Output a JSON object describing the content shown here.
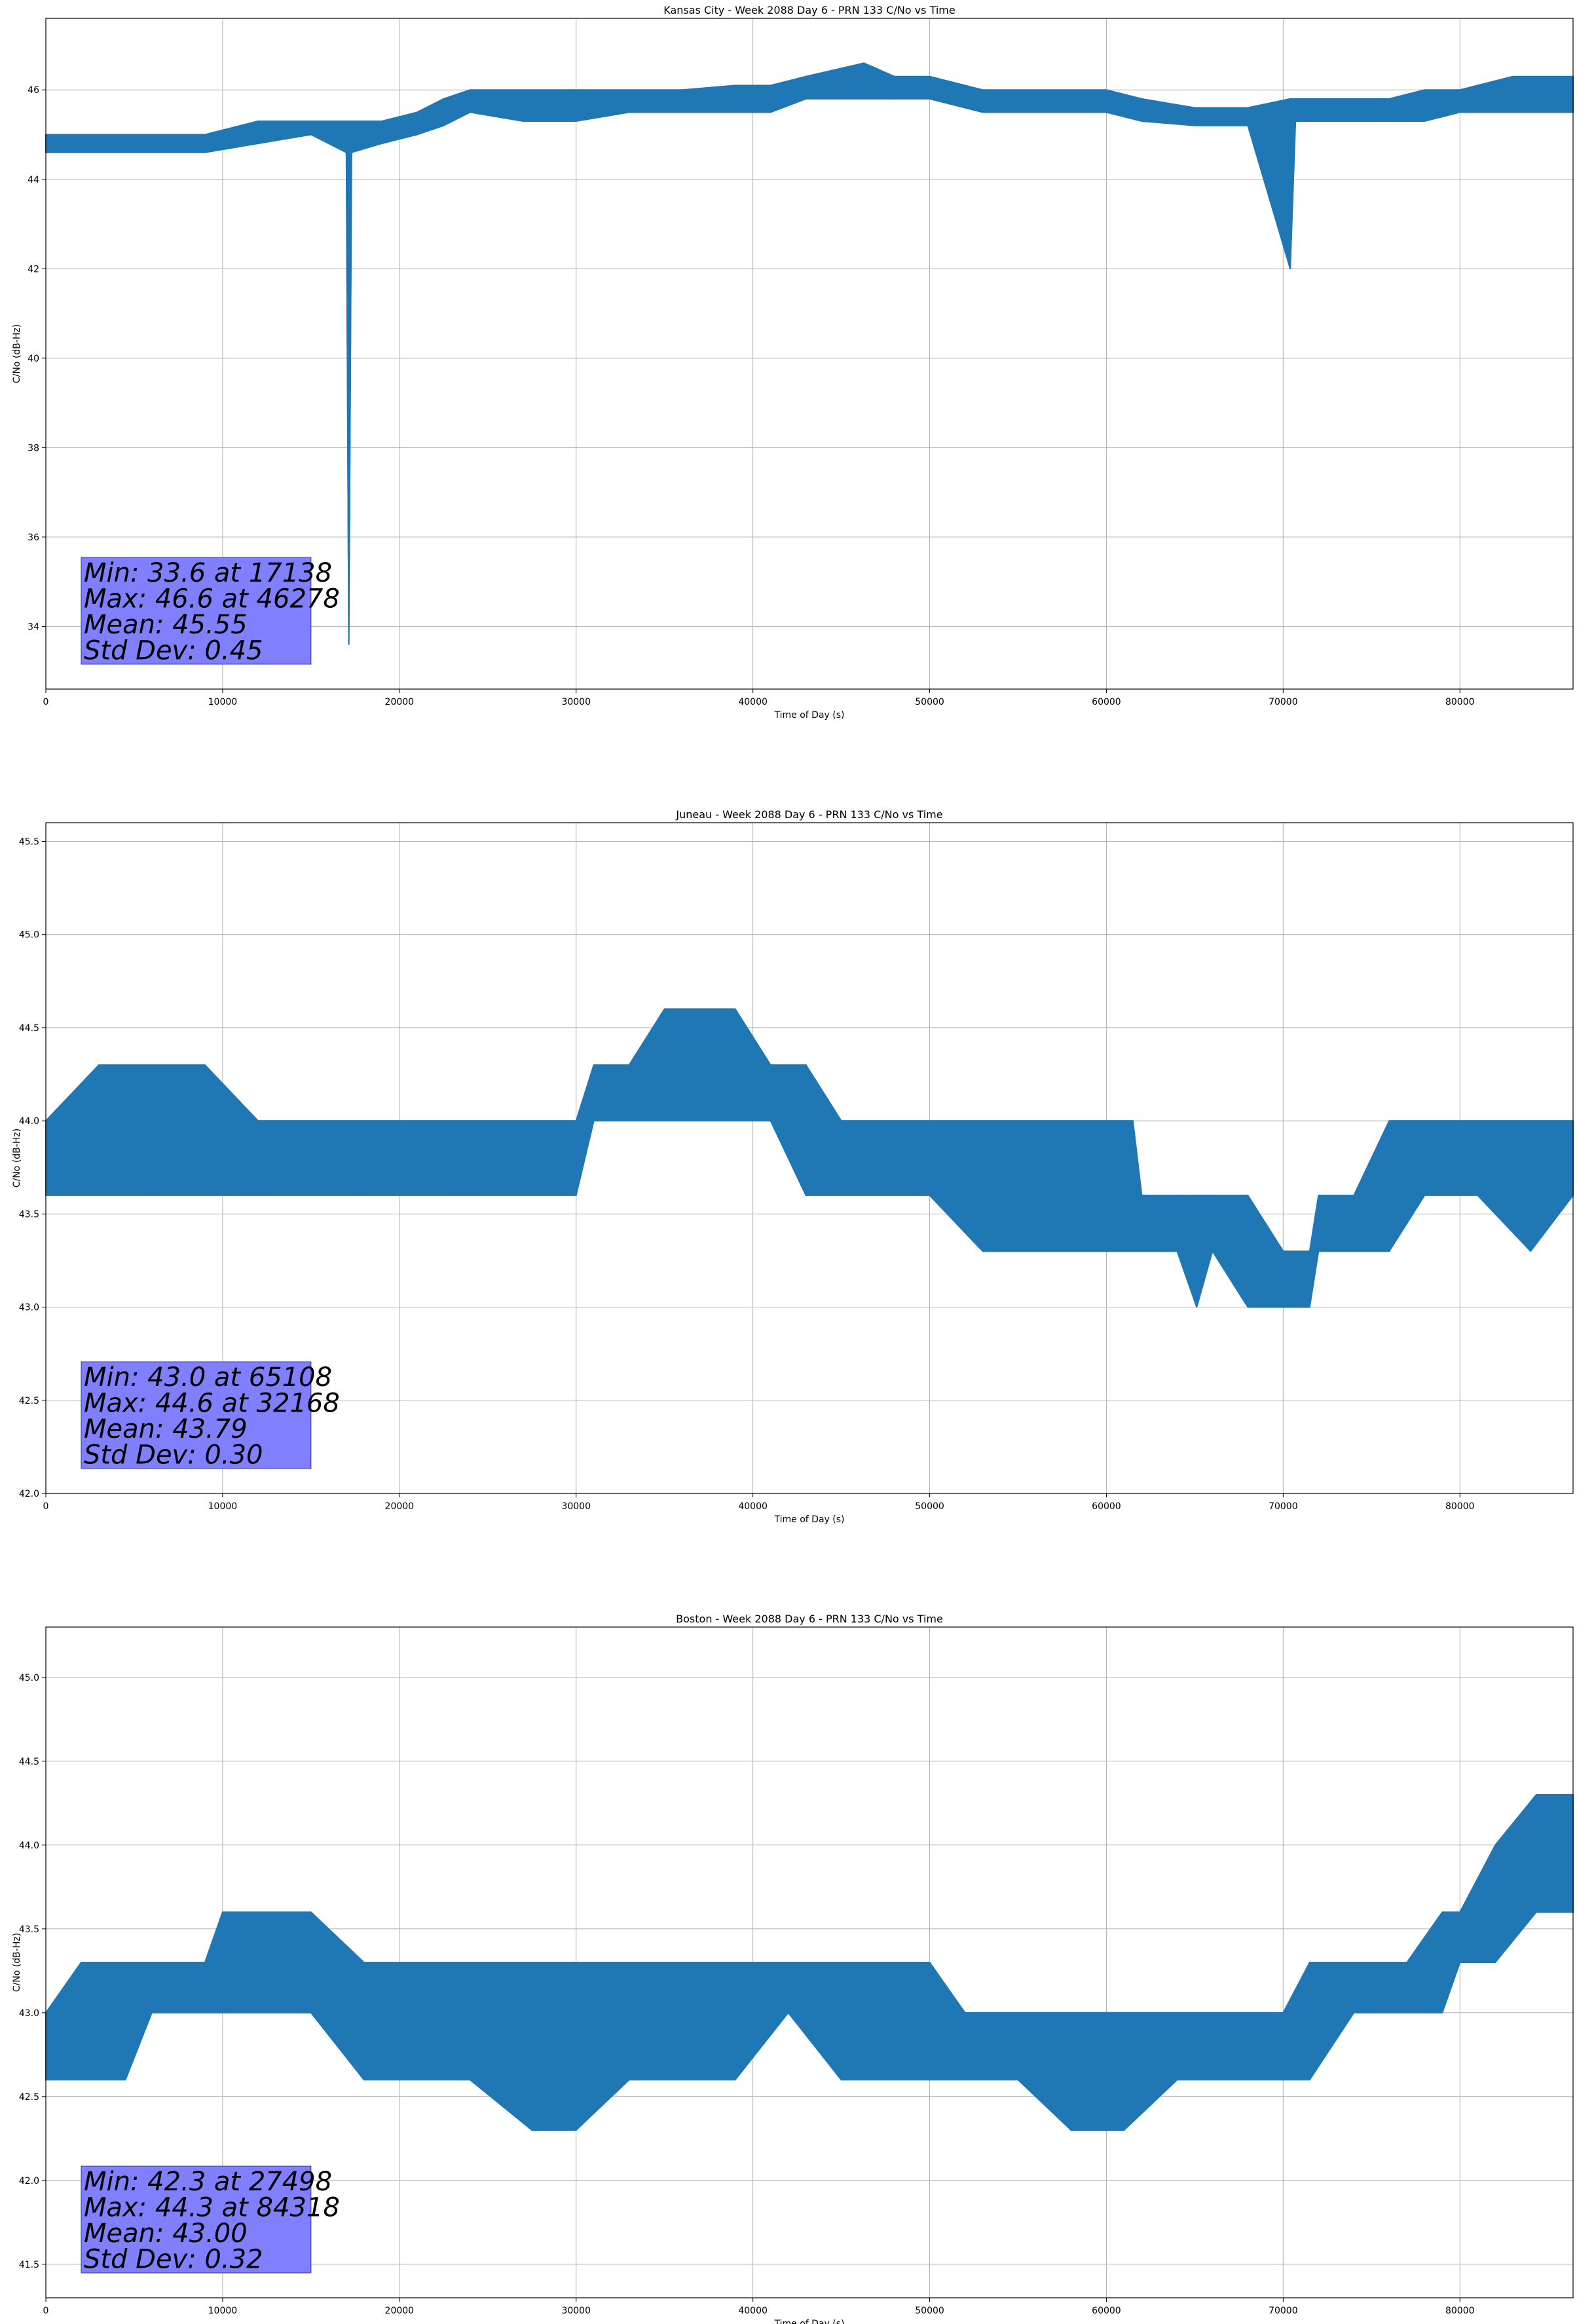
{
  "figure": {
    "colors": {
      "series": "#1f77b4",
      "grid": "#b0b0b0",
      "stats_box": "#8080ff",
      "stats_box_border": "#3333aa"
    }
  },
  "chart_data": [
    {
      "type": "line",
      "title": "Kansas City - Week 2088 Day 6 - PRN 133 C/No vs Time",
      "xlabel": "Time of Day (s)",
      "ylabel": "C/No (dB-Hz)",
      "xlim": [
        0,
        86400
      ],
      "ylim": [
        32.6,
        47.6
      ],
      "x_ticks": [
        0,
        10000,
        20000,
        30000,
        40000,
        50000,
        60000,
        70000,
        80000
      ],
      "y_ticks": [
        34,
        36,
        38,
        40,
        42,
        44,
        46
      ],
      "y_tick_format": "int",
      "grid": true,
      "series": [
        {
          "x": [
            0,
            3000,
            6000,
            9000,
            12000,
            15000,
            17000,
            17138,
            17300,
            19000,
            21000,
            22500,
            24000,
            27000,
            30000,
            33000,
            36000,
            39000,
            41000,
            43000,
            46278,
            48000,
            50000,
            53000,
            56000,
            60000,
            62000,
            65000,
            68000,
            70400,
            70700,
            73000,
            76000,
            78000,
            80000,
            83000,
            86400
          ],
          "y": [
            44.8,
            44.8,
            44.8,
            44.8,
            45.1,
            45.1,
            45.1,
            33.6,
            45.1,
            45.1,
            45.2,
            45.5,
            45.8,
            45.8,
            45.7,
            45.8,
            45.8,
            45.8,
            45.8,
            46.1,
            46.6,
            46.1,
            46.1,
            45.8,
            45.8,
            45.8,
            45.6,
            45.5,
            45.5,
            42.0,
            45.5,
            45.5,
            45.5,
            45.7,
            45.8,
            45.8,
            45.8
          ],
          "band_low": [
            44.6,
            44.6,
            44.6,
            44.6,
            44.8,
            45.0,
            44.6,
            33.6,
            44.6,
            44.8,
            45.0,
            45.2,
            45.5,
            45.3,
            45.3,
            45.5,
            45.5,
            45.5,
            45.5,
            45.8,
            45.8,
            45.8,
            45.8,
            45.5,
            45.5,
            45.5,
            45.3,
            45.2,
            45.2,
            42.0,
            45.3,
            45.3,
            45.3,
            45.3,
            45.5,
            45.5,
            45.5
          ],
          "band_high": [
            45.0,
            45.0,
            45.0,
            45.0,
            45.3,
            45.3,
            45.3,
            45.3,
            45.3,
            45.3,
            45.5,
            45.8,
            46.0,
            46.0,
            46.0,
            46.0,
            46.0,
            46.1,
            46.1,
            46.3,
            46.6,
            46.3,
            46.3,
            46.0,
            46.0,
            46.0,
            45.8,
            45.6,
            45.6,
            45.8,
            45.8,
            45.8,
            45.8,
            46.0,
            46.0,
            46.3,
            46.3
          ]
        }
      ],
      "stats": [
        "Min: 33.6 at 17138",
        "Max: 46.6 at 46278",
        "Mean: 45.55",
        "Std Dev: 0.45"
      ]
    },
    {
      "type": "line",
      "title": "Juneau - Week 2088 Day 6 - PRN 133 C/No vs Time",
      "xlabel": "Time of Day (s)",
      "ylabel": "C/No (dB-Hz)",
      "xlim": [
        0,
        86400
      ],
      "ylim": [
        42.0,
        45.6
      ],
      "x_ticks": [
        0,
        10000,
        20000,
        30000,
        40000,
        50000,
        60000,
        70000,
        80000
      ],
      "y_ticks": [
        42.0,
        42.5,
        43.0,
        43.5,
        44.0,
        44.5,
        45.0,
        45.5
      ],
      "y_tick_format": "1dp",
      "grid": true,
      "series": [
        {
          "x": [
            0,
            3000,
            6000,
            9000,
            12000,
            15000,
            18000,
            21000,
            24000,
            27000,
            30000,
            31000,
            33000,
            35000,
            37000,
            39000,
            41000,
            43000,
            45000,
            47000,
            50000,
            53000,
            56000,
            59000,
            61500,
            62000,
            64000,
            65108,
            66000,
            68000,
            70000,
            71500,
            72000,
            74000,
            76000,
            78000,
            79000,
            81000,
            84000,
            86400
          ],
          "y": [
            43.8,
            43.8,
            43.8,
            43.8,
            43.8,
            43.8,
            43.8,
            43.8,
            43.8,
            43.8,
            43.8,
            44.1,
            44.2,
            44.3,
            44.3,
            44.3,
            44.1,
            44.1,
            43.8,
            43.8,
            43.8,
            43.8,
            43.8,
            43.8,
            43.8,
            43.4,
            43.4,
            43.0,
            43.4,
            43.3,
            43.15,
            43.15,
            43.5,
            43.5,
            43.7,
            43.8,
            43.8,
            43.8,
            43.8,
            43.8
          ],
          "band_low": [
            43.6,
            43.6,
            43.6,
            43.6,
            43.6,
            43.6,
            43.6,
            43.6,
            43.6,
            43.6,
            43.6,
            44.0,
            44.0,
            44.0,
            44.0,
            44.0,
            44.0,
            43.6,
            43.6,
            43.6,
            43.6,
            43.3,
            43.3,
            43.3,
            43.3,
            43.3,
            43.3,
            43.0,
            43.3,
            43.0,
            43.0,
            43.0,
            43.3,
            43.3,
            43.3,
            43.6,
            43.6,
            43.6,
            43.3,
            43.6
          ],
          "band_high": [
            44.0,
            44.3,
            44.3,
            44.3,
            44.0,
            44.0,
            44.0,
            44.0,
            44.0,
            44.0,
            44.0,
            44.3,
            44.3,
            44.6,
            44.6,
            44.6,
            44.3,
            44.3,
            44.0,
            44.0,
            44.0,
            44.0,
            44.0,
            44.0,
            44.0,
            43.6,
            43.6,
            43.6,
            43.6,
            43.6,
            43.3,
            43.3,
            43.6,
            43.6,
            44.0,
            44.0,
            44.0,
            44.0,
            44.0,
            44.0
          ]
        }
      ],
      "stats": [
        "Min: 43.0 at 65108",
        "Max: 44.6 at 32168",
        "Mean: 43.79",
        "Std Dev: 0.30"
      ]
    },
    {
      "type": "line",
      "title": "Boston - Week 2088 Day 6 - PRN 133 C/No vs Time",
      "xlabel": "Time of Day (s)",
      "ylabel": "C/No (dB-Hz)",
      "xlim": [
        0,
        86400
      ],
      "ylim": [
        41.3,
        45.3
      ],
      "x_ticks": [
        0,
        10000,
        20000,
        30000,
        40000,
        50000,
        60000,
        70000,
        80000
      ],
      "y_ticks": [
        41.5,
        42.0,
        42.5,
        43.0,
        43.5,
        44.0,
        44.5,
        45.0
      ],
      "y_tick_format": "1dp",
      "grid": true,
      "series": [
        {
          "x": [
            0,
            2000,
            4500,
            6000,
            9000,
            10000,
            12500,
            15000,
            18000,
            19000,
            21000,
            24000,
            27498,
            30000,
            33000,
            36000,
            39000,
            42000,
            45000,
            50000,
            52000,
            55000,
            58000,
            61000,
            64000,
            67000,
            70000,
            71500,
            74000,
            77000,
            79000,
            80000,
            82000,
            84318,
            86400
          ],
          "y": [
            42.8,
            42.9,
            43.0,
            43.1,
            43.1,
            43.2,
            43.3,
            43.1,
            43.1,
            42.9,
            42.8,
            42.9,
            42.9,
            42.8,
            43.0,
            43.0,
            43.1,
            43.1,
            43.1,
            42.9,
            42.8,
            42.8,
            42.8,
            42.7,
            42.8,
            42.8,
            42.9,
            43.1,
            43.15,
            43.15,
            43.3,
            43.5,
            43.7,
            43.9,
            43.9
          ],
          "band_low": [
            42.6,
            42.6,
            42.6,
            43.0,
            43.0,
            43.0,
            43.0,
            43.0,
            42.6,
            42.6,
            42.6,
            42.6,
            42.3,
            42.3,
            42.6,
            42.6,
            42.6,
            43.0,
            42.6,
            42.6,
            42.6,
            42.6,
            42.3,
            42.3,
            42.6,
            42.6,
            42.6,
            42.6,
            43.0,
            43.0,
            43.0,
            43.3,
            43.3,
            43.6,
            43.6
          ],
          "band_high": [
            43.0,
            43.3,
            43.3,
            43.3,
            43.3,
            43.6,
            43.6,
            43.6,
            43.3,
            43.3,
            43.3,
            43.3,
            43.3,
            43.3,
            43.3,
            43.3,
            43.3,
            43.3,
            43.3,
            43.3,
            43.0,
            43.0,
            43.0,
            43.0,
            43.0,
            43.0,
            43.0,
            43.3,
            43.3,
            43.3,
            43.6,
            43.6,
            44.0,
            44.3,
            44.3
          ]
        }
      ],
      "stats": [
        "Min: 42.3 at 27498",
        "Max: 44.3 at 84318",
        "Mean: 43.00",
        "Std Dev: 0.32"
      ]
    }
  ]
}
